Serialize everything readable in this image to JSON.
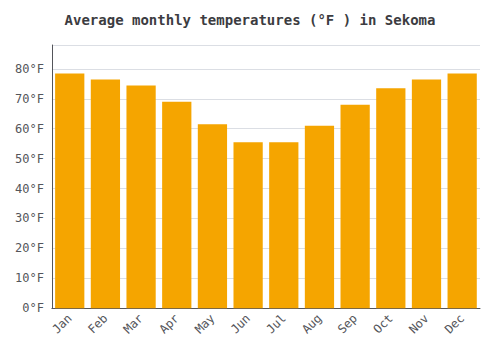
{
  "chart_data": {
    "type": "bar",
    "title": "Average monthly temperatures (°F ) in Sekoma",
    "categories": [
      "Jan",
      "Feb",
      "Mar",
      "Apr",
      "May",
      "Jun",
      "Jul",
      "Aug",
      "Sep",
      "Oct",
      "Nov",
      "Dec"
    ],
    "values": [
      78.5,
      76.5,
      74.5,
      69.0,
      61.5,
      55.5,
      55.5,
      61.0,
      68.0,
      73.5,
      76.5,
      78.5
    ],
    "color": "#F5A500",
    "ylim": [
      0,
      88
    ],
    "yticks": [
      {
        "value": 0,
        "label": "0°F"
      },
      {
        "value": 10,
        "label": "10°F"
      },
      {
        "value": 20,
        "label": "20°F"
      },
      {
        "value": 30,
        "label": "30°F"
      },
      {
        "value": 40,
        "label": "40°F"
      },
      {
        "value": 50,
        "label": "50°F"
      },
      {
        "value": 60,
        "label": "60°F"
      },
      {
        "value": 70,
        "label": "70°F"
      },
      {
        "value": 80,
        "label": "80°F"
      }
    ],
    "grid": true
  }
}
